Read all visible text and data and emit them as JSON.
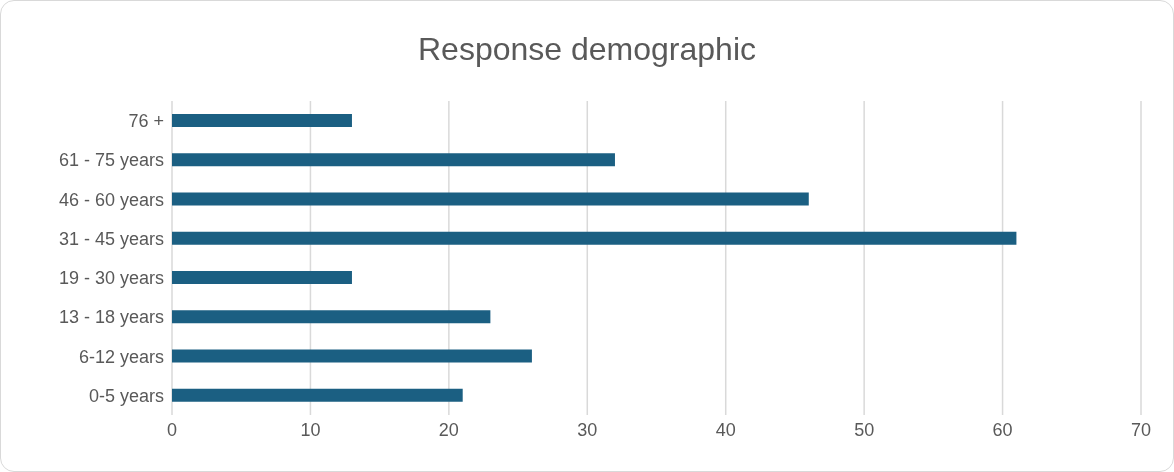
{
  "chart_data": {
    "type": "bar",
    "orientation": "horizontal",
    "title": "Response demographic",
    "categories": [
      "76 +",
      "61 - 75 years",
      "46 - 60 years",
      "31 - 45 years",
      "19 - 30 years",
      "13 - 18 years",
      "6-12 years",
      "0-5 years"
    ],
    "values": [
      13,
      32,
      46,
      61,
      13,
      23,
      26,
      21
    ],
    "color": "#1b5f82",
    "xlim": [
      0,
      70
    ],
    "xticks": [
      0,
      10,
      20,
      30,
      40,
      50,
      60,
      70
    ],
    "grid": "x"
  }
}
